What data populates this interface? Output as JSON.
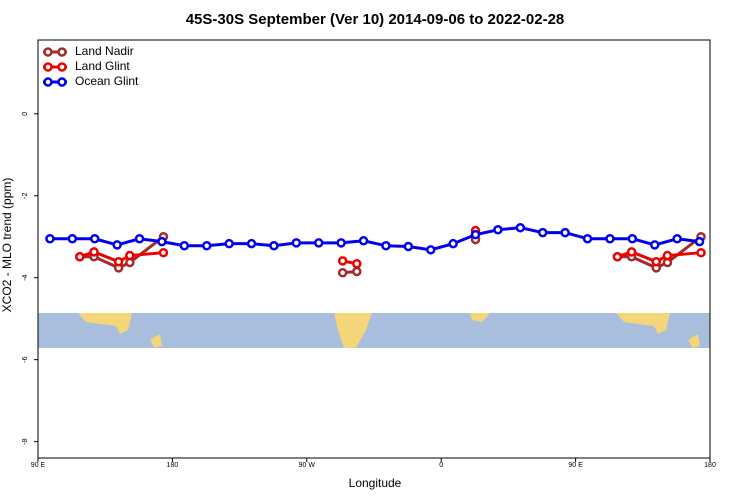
{
  "chart_data": {
    "type": "line",
    "title": "45S-30S September (Ver 10)   2014-09-06 to 2022-02-28",
    "x_label": "Longitude",
    "y_label": "XCO2 - MLO trend (ppm)",
    "xlim": [
      90,
      540
    ],
    "ylim": [
      -8.4,
      1.8
    ],
    "xticks": [
      {
        "value": 90,
        "label": "90 E"
      },
      180,
      {
        "value": 270,
        "label": "90 W"
      },
      {
        "value": 360,
        "label": "0"
      },
      {
        "value": 450,
        "label": "90 E"
      },
      {
        "value": 540,
        "label": "180"
      }
    ],
    "yticks": [
      0,
      -2,
      -4,
      -6,
      -8
    ],
    "legend": "top-left",
    "series": [
      {
        "name": "Land Nadir",
        "color": "#a52a2a",
        "x": [
          118,
          127.5,
          144,
          151.5,
          174,
          null,
          294,
          303.5,
          null,
          383,
          null,
          478,
          487.5,
          504,
          511.5,
          534
        ],
        "values": [
          -3.49,
          -3.49,
          -3.76,
          -3.63,
          -3.0,
          null,
          -3.88,
          -3.85,
          null,
          -3.07,
          null,
          -3.49,
          -3.49,
          -3.76,
          -3.63,
          -3.0
        ]
      },
      {
        "name": "Land Glint",
        "color": "#ee0000",
        "x": [
          118,
          127.5,
          144,
          151.5,
          174,
          null,
          294,
          303.5,
          null,
          383,
          null,
          478,
          487.5,
          504,
          511.5,
          534
        ],
        "values": [
          -3.49,
          -3.37,
          -3.61,
          -3.46,
          -3.39,
          null,
          -3.59,
          -3.66,
          null,
          -2.85,
          null,
          -3.49,
          -3.37,
          -3.61,
          -3.46,
          -3.39
        ]
      },
      {
        "name": "Ocean Glint",
        "color": "#0000ee",
        "x": [
          98,
          113,
          128,
          143,
          158,
          173,
          188,
          203,
          218,
          233,
          248,
          263,
          278,
          293,
          308,
          323,
          338,
          353,
          368,
          383,
          398,
          413,
          428,
          443,
          458,
          473,
          488,
          503,
          518,
          533
        ],
        "values": [
          -3.05,
          -3.05,
          -3.05,
          -3.2,
          -3.05,
          -3.12,
          -3.22,
          -3.22,
          -3.17,
          -3.17,
          -3.22,
          -3.15,
          -3.15,
          -3.15,
          -3.1,
          -3.22,
          -3.24,
          -3.32,
          -3.17,
          -2.95,
          -2.83,
          -2.78,
          -2.9,
          -2.9,
          -3.05,
          -3.05,
          -3.05,
          -3.2,
          -3.05,
          -3.12
        ]
      }
    ]
  }
}
